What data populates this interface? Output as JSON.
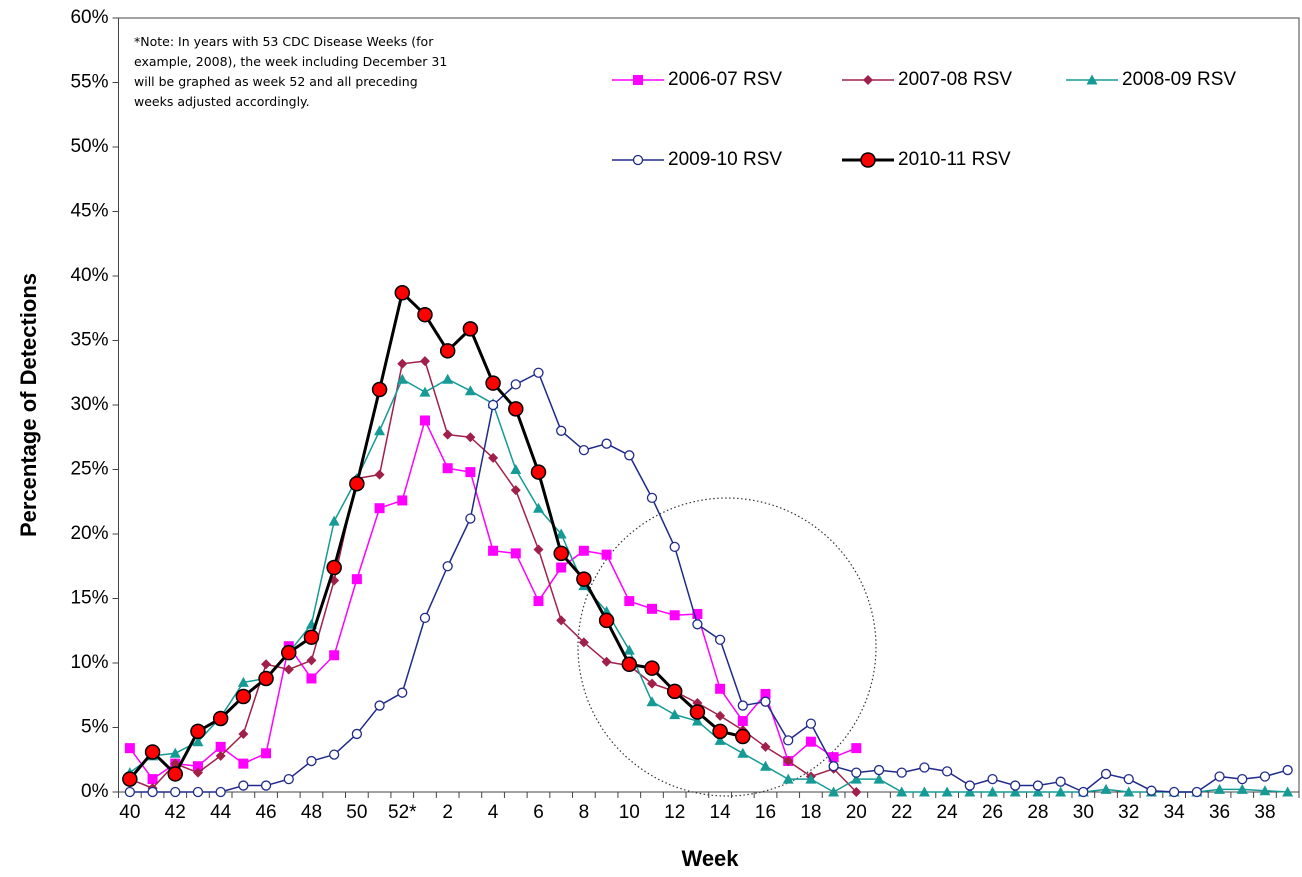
{
  "chart_data": {
    "type": "line",
    "note": [
      "*Note: In years with 53 CDC Disease Weeks (for",
      "example, 2008), the week including December 31",
      "will be graphed as week 52 and all preceding",
      "weeks adjusted accordingly."
    ],
    "x_label": "Week",
    "y_label": "Percentage of Detections",
    "categories": [
      "40",
      null,
      "42",
      null,
      "44",
      null,
      "46",
      null,
      "48",
      null,
      "50",
      null,
      "52*",
      null,
      "2",
      null,
      "4",
      null,
      "6",
      null,
      "8",
      null,
      "10",
      null,
      "12",
      null,
      "14",
      null,
      "16",
      null,
      "18",
      null,
      "20",
      null,
      "22",
      null,
      "24",
      null,
      "26",
      null,
      "28",
      null,
      "30",
      null,
      "32",
      null,
      "34",
      null,
      "36",
      null,
      "38",
      null
    ],
    "ylim": [
      0,
      60
    ],
    "yticks": [
      {
        "value": 0,
        "label": "0%"
      },
      {
        "value": 5,
        "label": "5%"
      },
      {
        "value": 10,
        "label": "10%"
      },
      {
        "value": 15,
        "label": "15%"
      },
      {
        "value": 20,
        "label": "20%"
      },
      {
        "value": 25,
        "label": "25%"
      },
      {
        "value": 30,
        "label": "30%"
      },
      {
        "value": 35,
        "label": "35%"
      },
      {
        "value": 40,
        "label": "40%"
      },
      {
        "value": 45,
        "label": "45%"
      },
      {
        "value": 50,
        "label": "50%"
      },
      {
        "value": 55,
        "label": "55%"
      },
      {
        "value": 60,
        "label": "60%"
      }
    ],
    "grid": false,
    "series": [
      {
        "name": "2006-07 RSV",
        "color": "#ff00ff",
        "marker": "square",
        "line_width": 1.5,
        "values": [
          3.4,
          1.0,
          2.2,
          2.0,
          3.5,
          2.2,
          3.0,
          11.3,
          8.8,
          10.6,
          16.5,
          22.0,
          22.6,
          28.8,
          25.1,
          24.8,
          18.7,
          18.5,
          14.8,
          17.4,
          18.7,
          18.4,
          14.8,
          14.2,
          13.7,
          13.8,
          8.0,
          5.5,
          7.6,
          2.4,
          3.9,
          2.7,
          3.4,
          null,
          null,
          null,
          null,
          null,
          null,
          null,
          null,
          null,
          null,
          null,
          null,
          null,
          null,
          null,
          null,
          null,
          null,
          null
        ]
      },
      {
        "name": "2007-08 RSV",
        "color": "#a0204a",
        "marker": "diamond",
        "line_width": 1.5,
        "values": [
          1.0,
          0.3,
          2.2,
          1.5,
          2.8,
          4.5,
          9.9,
          9.5,
          10.2,
          16.4,
          24.3,
          24.6,
          33.2,
          33.4,
          27.7,
          27.5,
          25.9,
          23.4,
          18.8,
          13.3,
          11.6,
          10.1,
          9.8,
          8.4,
          7.8,
          6.9,
          5.9,
          4.8,
          3.5,
          2.4,
          1.2,
          1.8,
          0.0,
          null,
          null,
          null,
          null,
          null,
          null,
          null,
          null,
          null,
          null,
          null,
          null,
          null,
          null,
          null,
          null,
          null,
          null,
          null
        ]
      },
      {
        "name": "2008-09 RSV",
        "color": "#159a96",
        "marker": "triangle",
        "line_width": 1.5,
        "values": [
          1.5,
          2.8,
          3.0,
          3.9,
          5.8,
          8.5,
          8.8,
          10.8,
          13.0,
          21.0,
          24.3,
          28.0,
          32.0,
          31.0,
          32.0,
          31.1,
          30.1,
          25.0,
          22.0,
          20.0,
          16.0,
          14.0,
          11.0,
          7.0,
          6.0,
          5.5,
          4.0,
          3.0,
          2.0,
          1.0,
          1.0,
          0.0,
          1.0,
          1.0,
          0.0,
          0.0,
          0.0,
          0.0,
          0.0,
          0.0,
          0.0,
          0.0,
          0.0,
          0.2,
          0.0,
          0.0,
          0.0,
          0.0,
          0.2,
          0.2,
          0.1,
          0.0
        ]
      },
      {
        "name": "2009-10 RSV",
        "color": "#1f2a8a",
        "marker": "circle-open",
        "line_width": 1.5,
        "values": [
          0.0,
          0.0,
          0.0,
          0.0,
          0.0,
          0.5,
          0.5,
          1.0,
          2.4,
          2.9,
          4.5,
          6.7,
          7.7,
          13.5,
          17.5,
          21.2,
          30.0,
          31.6,
          32.5,
          28.0,
          26.5,
          27.0,
          26.1,
          22.8,
          19.0,
          13.0,
          11.8,
          6.7,
          7.0,
          4.0,
          5.3,
          2.0,
          1.5,
          1.7,
          1.5,
          1.9,
          1.6,
          0.5,
          1.0,
          0.5,
          0.5,
          0.8,
          0.0,
          1.4,
          1.0,
          0.1,
          0.0,
          0.0,
          1.2,
          1.0,
          1.2,
          1.7
        ]
      },
      {
        "name": "2010-11 RSV",
        "color": "#ff0000",
        "line_color": "#000000",
        "marker": "circle",
        "line_width": 3,
        "values": [
          1.0,
          3.1,
          1.4,
          4.7,
          5.7,
          7.4,
          8.8,
          10.8,
          12.0,
          17.4,
          23.9,
          31.2,
          38.7,
          37.0,
          34.2,
          35.9,
          31.7,
          29.7,
          24.8,
          18.5,
          16.5,
          13.3,
          9.9,
          9.6,
          7.8,
          6.2,
          4.7,
          4.3,
          null,
          null,
          null,
          null,
          null,
          null,
          null,
          null,
          null,
          null,
          null,
          null,
          null,
          null,
          null,
          null,
          null,
          null,
          null,
          null,
          null,
          null,
          null,
          null
        ]
      }
    ]
  }
}
